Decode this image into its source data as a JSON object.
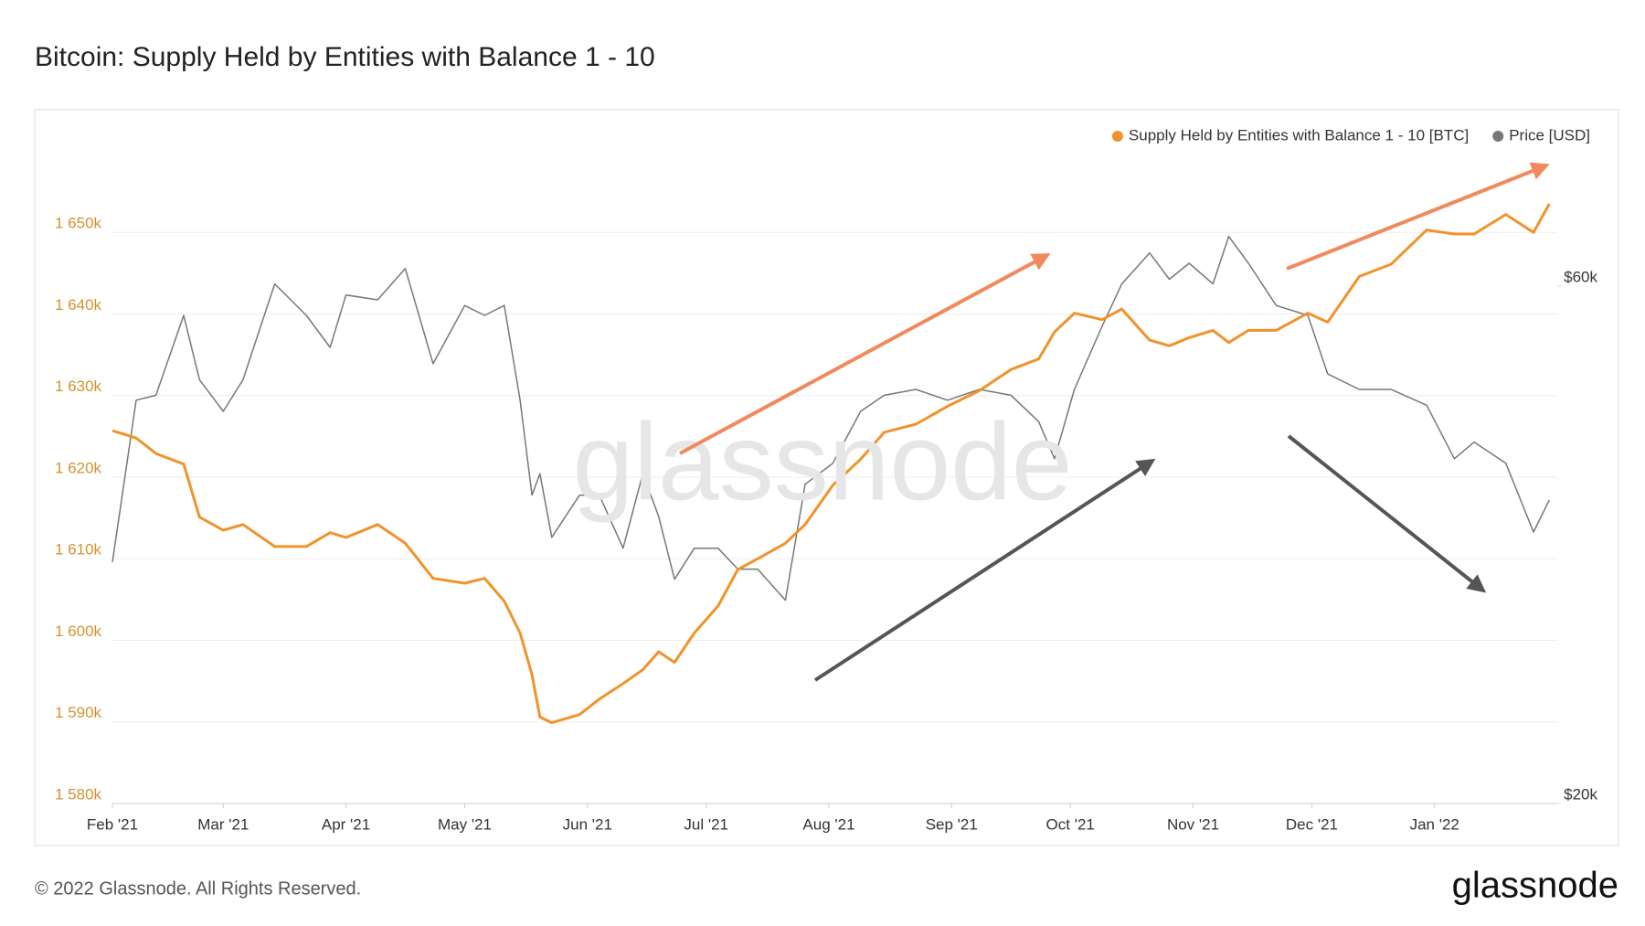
{
  "chart_data": {
    "type": "line",
    "title": "Bitcoin: Supply Held by Entities with Balance 1 - 10",
    "watermark": "glassnode",
    "footer": "© 2022 Glassnode. All Rights Reserved.",
    "logo": "glassnode",
    "legend": "top-right",
    "grid": true,
    "y2_log": true,
    "xlim": [
      0,
      365
    ],
    "xticks": [
      {
        "value": 0,
        "label": "Feb '21"
      },
      {
        "value": 28,
        "label": "Mar '21"
      },
      {
        "value": 59,
        "label": "Apr '21"
      },
      {
        "value": 89,
        "label": "May '21"
      },
      {
        "value": 120,
        "label": "Jun '21"
      },
      {
        "value": 150,
        "label": "Jul '21"
      },
      {
        "value": 181,
        "label": "Aug '21"
      },
      {
        "value": 212,
        "label": "Sep '21"
      },
      {
        "value": 242,
        "label": "Oct '21"
      },
      {
        "value": 273,
        "label": "Nov '21"
      },
      {
        "value": 303,
        "label": "Dec '21"
      },
      {
        "value": 334,
        "label": "Jan '22"
      }
    ],
    "ylim": [
      1580000,
      1660000
    ],
    "yticks": [
      {
        "value": 1580000,
        "label": "1 580k"
      },
      {
        "value": 1590000,
        "label": "1 590k"
      },
      {
        "value": 1600000,
        "label": "1 600k"
      },
      {
        "value": 1610000,
        "label": "1 610k"
      },
      {
        "value": 1620000,
        "label": "1 620k"
      },
      {
        "value": 1630000,
        "label": "1 630k"
      },
      {
        "value": 1640000,
        "label": "1 640k"
      },
      {
        "value": 1650000,
        "label": "1 650k"
      }
    ],
    "y2lim": [
      20000,
      80000
    ],
    "y2ticks": [
      {
        "value": 20000,
        "label": "$20k"
      },
      {
        "value": 60000,
        "label": "$60k"
      }
    ],
    "x": [
      0,
      6,
      11,
      18,
      22,
      28,
      33,
      41,
      49,
      55,
      59,
      67,
      74,
      81,
      89,
      94,
      99,
      103,
      106,
      108,
      111,
      118,
      123,
      129,
      134,
      138,
      142,
      147,
      153,
      158,
      163,
      170,
      175,
      182,
      189,
      195,
      203,
      211,
      219,
      227,
      234,
      238,
      243,
      250,
      255,
      262,
      267,
      272,
      278,
      282,
      287,
      294,
      302,
      307,
      315,
      323,
      332,
      339,
      344,
      352,
      359,
      363
    ],
    "series": [
      {
        "name": "Supply Held by Entities with Balance 1 - 10 [BTC]",
        "color": "#f0932b",
        "axis": "y",
        "values": [
          1625700,
          1624800,
          1622900,
          1621600,
          1615100,
          1613500,
          1614200,
          1611500,
          1611500,
          1613200,
          1612600,
          1614200,
          1611900,
          1607600,
          1607000,
          1607600,
          1604800,
          1600900,
          1595800,
          1590600,
          1589900,
          1590900,
          1592800,
          1594700,
          1596400,
          1598600,
          1597300,
          1600900,
          1604200,
          1608700,
          1610000,
          1611900,
          1614200,
          1619000,
          1622200,
          1625500,
          1626500,
          1628700,
          1630600,
          1633200,
          1634500,
          1637800,
          1640100,
          1639300,
          1640600,
          1636800,
          1636100,
          1637100,
          1638000,
          1636500,
          1638000,
          1638000,
          1640100,
          1639000,
          1644600,
          1646100,
          1650300,
          1649800,
          1649800,
          1652200,
          1650000,
          1653500
        ]
      },
      {
        "name": "Price [USD]",
        "color": "#777777",
        "axis": "y2",
        "values": [
          33400,
          47100,
          47600,
          56400,
          49200,
          46000,
          49200,
          60300,
          56400,
          52700,
          58900,
          58300,
          62300,
          50900,
          57600,
          56400,
          57600,
          47100,
          38500,
          40300,
          35200,
          38500,
          38500,
          34400,
          40300,
          36800,
          32200,
          34400,
          34400,
          32900,
          32900,
          30800,
          39400,
          41200,
          46000,
          47600,
          48200,
          47100,
          48200,
          47600,
          45000,
          41600,
          48200,
          55100,
          60300,
          64400,
          60900,
          63000,
          60300,
          66700,
          63000,
          57600,
          56400,
          49800,
          48200,
          48200,
          46600,
          41600,
          43100,
          41200,
          35600,
          38100
        ]
      }
    ]
  }
}
